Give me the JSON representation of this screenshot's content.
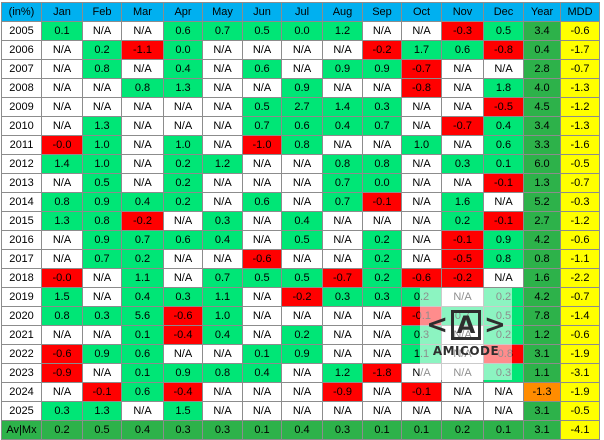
{
  "headers": [
    "(in%)",
    "Jan",
    "Feb",
    "Mar",
    "Apr",
    "May",
    "Jun",
    "Jul",
    "Aug",
    "Sep",
    "Oct",
    "Nov",
    "Dec",
    "Year",
    "MDD"
  ],
  "rows": [
    {
      "label": "2005",
      "cells": [
        [
          "0.1",
          "g"
        ],
        [
          "N/A",
          "w"
        ],
        [
          "N/A",
          "w"
        ],
        [
          "0.6",
          "g"
        ],
        [
          "0.7",
          "g"
        ],
        [
          "0.5",
          "g"
        ],
        [
          "0.0",
          "g"
        ],
        [
          "1.2",
          "g"
        ],
        [
          "N/A",
          "w"
        ],
        [
          "N/A",
          "w"
        ],
        [
          "-0.3",
          "r"
        ],
        [
          "0.5",
          "g"
        ]
      ],
      "year": "3.4",
      "mdd": "-0.6"
    },
    {
      "label": "2006",
      "cells": [
        [
          "N/A",
          "w"
        ],
        [
          "0.2",
          "g"
        ],
        [
          "-1.1",
          "r"
        ],
        [
          "0.0",
          "g"
        ],
        [
          "N/A",
          "w"
        ],
        [
          "N/A",
          "w"
        ],
        [
          "N/A",
          "w"
        ],
        [
          "N/A",
          "w"
        ],
        [
          "-0.2",
          "r"
        ],
        [
          "1.7",
          "g"
        ],
        [
          "0.6",
          "g"
        ],
        [
          "-0.8",
          "r"
        ]
      ],
      "year": "0.4",
      "mdd": "-1.7"
    },
    {
      "label": "2007",
      "cells": [
        [
          "N/A",
          "w"
        ],
        [
          "0.8",
          "g"
        ],
        [
          "N/A",
          "w"
        ],
        [
          "0.4",
          "g"
        ],
        [
          "N/A",
          "w"
        ],
        [
          "0.6",
          "g"
        ],
        [
          "N/A",
          "w"
        ],
        [
          "0.9",
          "g"
        ],
        [
          "0.9",
          "g"
        ],
        [
          "-0.7",
          "r"
        ],
        [
          "N/A",
          "w"
        ],
        [
          "N/A",
          "w"
        ]
      ],
      "year": "2.8",
      "mdd": "-0.7"
    },
    {
      "label": "2008",
      "cells": [
        [
          "N/A",
          "w"
        ],
        [
          "N/A",
          "w"
        ],
        [
          "0.8",
          "g"
        ],
        [
          "1.3",
          "g"
        ],
        [
          "N/A",
          "w"
        ],
        [
          "N/A",
          "w"
        ],
        [
          "0.9",
          "g"
        ],
        [
          "N/A",
          "w"
        ],
        [
          "N/A",
          "w"
        ],
        [
          "-0.8",
          "r"
        ],
        [
          "N/A",
          "w"
        ],
        [
          "1.8",
          "g"
        ]
      ],
      "year": "4.0",
      "mdd": "-1.3"
    },
    {
      "label": "2009",
      "cells": [
        [
          "N/A",
          "w"
        ],
        [
          "N/A",
          "w"
        ],
        [
          "N/A",
          "w"
        ],
        [
          "N/A",
          "w"
        ],
        [
          "N/A",
          "w"
        ],
        [
          "0.5",
          "g"
        ],
        [
          "2.7",
          "g"
        ],
        [
          "1.4",
          "g"
        ],
        [
          "0.3",
          "g"
        ],
        [
          "N/A",
          "w"
        ],
        [
          "N/A",
          "w"
        ],
        [
          "-0.5",
          "r"
        ]
      ],
      "year": "4.5",
      "mdd": "-1.2"
    },
    {
      "label": "2010",
      "cells": [
        [
          "N/A",
          "w"
        ],
        [
          "1.3",
          "g"
        ],
        [
          "N/A",
          "w"
        ],
        [
          "N/A",
          "w"
        ],
        [
          "N/A",
          "w"
        ],
        [
          "0.7",
          "g"
        ],
        [
          "0.6",
          "g"
        ],
        [
          "0.4",
          "g"
        ],
        [
          "0.7",
          "g"
        ],
        [
          "N/A",
          "w"
        ],
        [
          "-0.7",
          "r"
        ],
        [
          "0.4",
          "g"
        ]
      ],
      "year": "3.4",
      "mdd": "-1.3"
    },
    {
      "label": "2011",
      "cells": [
        [
          "-0.0",
          "r"
        ],
        [
          "1.0",
          "g"
        ],
        [
          "N/A",
          "w"
        ],
        [
          "1.0",
          "g"
        ],
        [
          "N/A",
          "w"
        ],
        [
          "-1.0",
          "r"
        ],
        [
          "0.8",
          "g"
        ],
        [
          "N/A",
          "w"
        ],
        [
          "N/A",
          "w"
        ],
        [
          "1.0",
          "g"
        ],
        [
          "N/A",
          "w"
        ],
        [
          "0.6",
          "g"
        ]
      ],
      "year": "3.3",
      "mdd": "-1.6"
    },
    {
      "label": "2012",
      "cells": [
        [
          "1.4",
          "g"
        ],
        [
          "1.0",
          "g"
        ],
        [
          "N/A",
          "w"
        ],
        [
          "0.2",
          "g"
        ],
        [
          "1.2",
          "g"
        ],
        [
          "N/A",
          "w"
        ],
        [
          "N/A",
          "w"
        ],
        [
          "0.8",
          "g"
        ],
        [
          "0.8",
          "g"
        ],
        [
          "N/A",
          "w"
        ],
        [
          "0.3",
          "g"
        ],
        [
          "0.1",
          "g"
        ]
      ],
      "year": "6.0",
      "mdd": "-0.5"
    },
    {
      "label": "2013",
      "cells": [
        [
          "N/A",
          "w"
        ],
        [
          "0.5",
          "g"
        ],
        [
          "N/A",
          "w"
        ],
        [
          "0.2",
          "g"
        ],
        [
          "N/A",
          "w"
        ],
        [
          "N/A",
          "w"
        ],
        [
          "N/A",
          "w"
        ],
        [
          "0.7",
          "g"
        ],
        [
          "0.0",
          "g"
        ],
        [
          "N/A",
          "w"
        ],
        [
          "N/A",
          "w"
        ],
        [
          "-0.1",
          "r"
        ]
      ],
      "year": "1.3",
      "mdd": "-0.7"
    },
    {
      "label": "2014",
      "cells": [
        [
          "0.8",
          "g"
        ],
        [
          "0.9",
          "g"
        ],
        [
          "0.4",
          "g"
        ],
        [
          "0.2",
          "g"
        ],
        [
          "N/A",
          "w"
        ],
        [
          "0.6",
          "g"
        ],
        [
          "N/A",
          "w"
        ],
        [
          "0.7",
          "g"
        ],
        [
          "-0.1",
          "r"
        ],
        [
          "N/A",
          "w"
        ],
        [
          "1.6",
          "g"
        ],
        [
          "N/A",
          "w"
        ]
      ],
      "year": "5.2",
      "mdd": "-0.3"
    },
    {
      "label": "2015",
      "cells": [
        [
          "1.3",
          "g"
        ],
        [
          "0.8",
          "g"
        ],
        [
          "-0.2",
          "r"
        ],
        [
          "N/A",
          "w"
        ],
        [
          "0.3",
          "g"
        ],
        [
          "N/A",
          "w"
        ],
        [
          "0.4",
          "g"
        ],
        [
          "N/A",
          "w"
        ],
        [
          "N/A",
          "w"
        ],
        [
          "N/A",
          "w"
        ],
        [
          "0.2",
          "g"
        ],
        [
          "-0.1",
          "r"
        ]
      ],
      "year": "2.7",
      "mdd": "-1.2"
    },
    {
      "label": "2016",
      "cells": [
        [
          "N/A",
          "w"
        ],
        [
          "0.9",
          "g"
        ],
        [
          "0.7",
          "g"
        ],
        [
          "0.6",
          "g"
        ],
        [
          "0.4",
          "g"
        ],
        [
          "N/A",
          "w"
        ],
        [
          "0.5",
          "g"
        ],
        [
          "N/A",
          "w"
        ],
        [
          "0.2",
          "g"
        ],
        [
          "N/A",
          "w"
        ],
        [
          "-0.1",
          "r"
        ],
        [
          "0.9",
          "g"
        ]
      ],
      "year": "4.2",
      "mdd": "-0.6"
    },
    {
      "label": "2017",
      "cells": [
        [
          "N/A",
          "w"
        ],
        [
          "0.7",
          "g"
        ],
        [
          "0.2",
          "g"
        ],
        [
          "N/A",
          "w"
        ],
        [
          "N/A",
          "w"
        ],
        [
          "-0.6",
          "r"
        ],
        [
          "N/A",
          "w"
        ],
        [
          "N/A",
          "w"
        ],
        [
          "0.2",
          "g"
        ],
        [
          "N/A",
          "w"
        ],
        [
          "-0.5",
          "r"
        ],
        [
          "0.8",
          "g"
        ]
      ],
      "year": "0.8",
      "mdd": "-1.1"
    },
    {
      "label": "2018",
      "cells": [
        [
          "-0.0",
          "r"
        ],
        [
          "N/A",
          "w"
        ],
        [
          "1.1",
          "g"
        ],
        [
          "N/A",
          "w"
        ],
        [
          "0.7",
          "g"
        ],
        [
          "0.5",
          "g"
        ],
        [
          "0.5",
          "g"
        ],
        [
          "-0.7",
          "r"
        ],
        [
          "0.2",
          "g"
        ],
        [
          "-0.6",
          "r"
        ],
        [
          "-0.2",
          "r"
        ],
        [
          "N/A",
          "w"
        ]
      ],
      "year": "1.6",
      "mdd": "-2.2"
    },
    {
      "label": "2019",
      "cells": [
        [
          "1.5",
          "g"
        ],
        [
          "N/A",
          "w"
        ],
        [
          "0.4",
          "g"
        ],
        [
          "0.3",
          "g"
        ],
        [
          "1.1",
          "g"
        ],
        [
          "N/A",
          "w"
        ],
        [
          "-0.2",
          "r"
        ],
        [
          "0.3",
          "g"
        ],
        [
          "0.3",
          "g"
        ],
        [
          "0.2",
          "g"
        ],
        [
          "N/A",
          "w"
        ],
        [
          "0.2",
          "g"
        ]
      ],
      "year": "4.2",
      "mdd": "-0.7"
    },
    {
      "label": "2020",
      "cells": [
        [
          "0.8",
          "g"
        ],
        [
          "0.3",
          "g"
        ],
        [
          "5.6",
          "g"
        ],
        [
          "-0.6",
          "r"
        ],
        [
          "1.0",
          "g"
        ],
        [
          "N/A",
          "w"
        ],
        [
          "N/A",
          "w"
        ],
        [
          "N/A",
          "w"
        ],
        [
          "N/A",
          "w"
        ],
        [
          "-0.1",
          "r"
        ],
        [
          "0.7",
          "g"
        ],
        [
          "0.5",
          "g"
        ]
      ],
      "year": "7.8",
      "mdd": "-1.4"
    },
    {
      "label": "2021",
      "cells": [
        [
          "N/A",
          "w"
        ],
        [
          "N/A",
          "w"
        ],
        [
          "0.1",
          "g"
        ],
        [
          "-0.4",
          "r"
        ],
        [
          "0.4",
          "g"
        ],
        [
          "N/A",
          "w"
        ],
        [
          "0.2",
          "g"
        ],
        [
          "N/A",
          "w"
        ],
        [
          "N/A",
          "w"
        ],
        [
          "0.3",
          "g"
        ],
        [
          "N/A",
          "w"
        ],
        [
          "0.2",
          "g"
        ]
      ],
      "year": "1.2",
      "mdd": "-0.6"
    },
    {
      "label": "2022",
      "cells": [
        [
          "-0.6",
          "r"
        ],
        [
          "0.9",
          "g"
        ],
        [
          "0.6",
          "g"
        ],
        [
          "N/A",
          "w"
        ],
        [
          "N/A",
          "w"
        ],
        [
          "0.1",
          "g"
        ],
        [
          "0.9",
          "g"
        ],
        [
          "N/A",
          "w"
        ],
        [
          "N/A",
          "w"
        ],
        [
          "1.1",
          "g"
        ],
        [
          "N/A",
          "w"
        ],
        [
          "-0.8",
          "r"
        ]
      ],
      "year": "3.1",
      "mdd": "-1.9"
    },
    {
      "label": "2023",
      "cells": [
        [
          "-0.9",
          "r"
        ],
        [
          "N/A",
          "w"
        ],
        [
          "0.1",
          "g"
        ],
        [
          "0.9",
          "g"
        ],
        [
          "0.8",
          "g"
        ],
        [
          "0.4",
          "g"
        ],
        [
          "N/A",
          "w"
        ],
        [
          "1.2",
          "g"
        ],
        [
          "-1.8",
          "r"
        ],
        [
          "N/A",
          "w"
        ],
        [
          "N/A",
          "w"
        ],
        [
          "0.3",
          "g"
        ]
      ],
      "year": "1.1",
      "mdd": "-3.1"
    },
    {
      "label": "2024",
      "cells": [
        [
          "N/A",
          "w"
        ],
        [
          "-0.1",
          "r"
        ],
        [
          "0.6",
          "g"
        ],
        [
          "-0.4",
          "r"
        ],
        [
          "N/A",
          "w"
        ],
        [
          "N/A",
          "w"
        ],
        [
          "N/A",
          "w"
        ],
        [
          "-0.9",
          "r"
        ],
        [
          "N/A",
          "w"
        ],
        [
          "-0.1",
          "r"
        ],
        [
          "N/A",
          "w"
        ],
        [
          "N/A",
          "w"
        ]
      ],
      "year": "-1.3",
      "yearColor": "o",
      "mdd": "-1.9"
    },
    {
      "label": "2025",
      "cells": [
        [
          "0.3",
          "g"
        ],
        [
          "1.3",
          "g"
        ],
        [
          "N/A",
          "w"
        ],
        [
          "1.5",
          "g"
        ],
        [
          "N/A",
          "w"
        ],
        [
          "N/A",
          "w"
        ],
        [
          "N/A",
          "w"
        ],
        [
          "N/A",
          "w"
        ],
        [
          "N/A",
          "w"
        ],
        [
          "N/A",
          "w"
        ],
        [
          "N/A",
          "w"
        ],
        [
          "N/A",
          "w"
        ]
      ],
      "year": "3.1",
      "mdd": "-0.5"
    }
  ],
  "summary": {
    "label": "Av|Mx",
    "cells": [
      "0.2",
      "0.5",
      "0.4",
      "0.3",
      "0.3",
      "0.1",
      "0.4",
      "0.3",
      "0.1",
      "0.1",
      "0.2",
      "0.1"
    ],
    "year": "3.1",
    "mdd": "-4.1"
  },
  "colors": {
    "header": "#00b0f0",
    "positive": "#00e676",
    "negative": "#ff0000",
    "year": "#2db24a",
    "year_negative": "#ff8c00",
    "mdd": "#ffff00"
  },
  "watermark": {
    "icon": "amicode-logo-icon",
    "glyph_left": "<",
    "glyph_center": "A",
    "glyph_right": ">",
    "text": "AMICODE"
  }
}
